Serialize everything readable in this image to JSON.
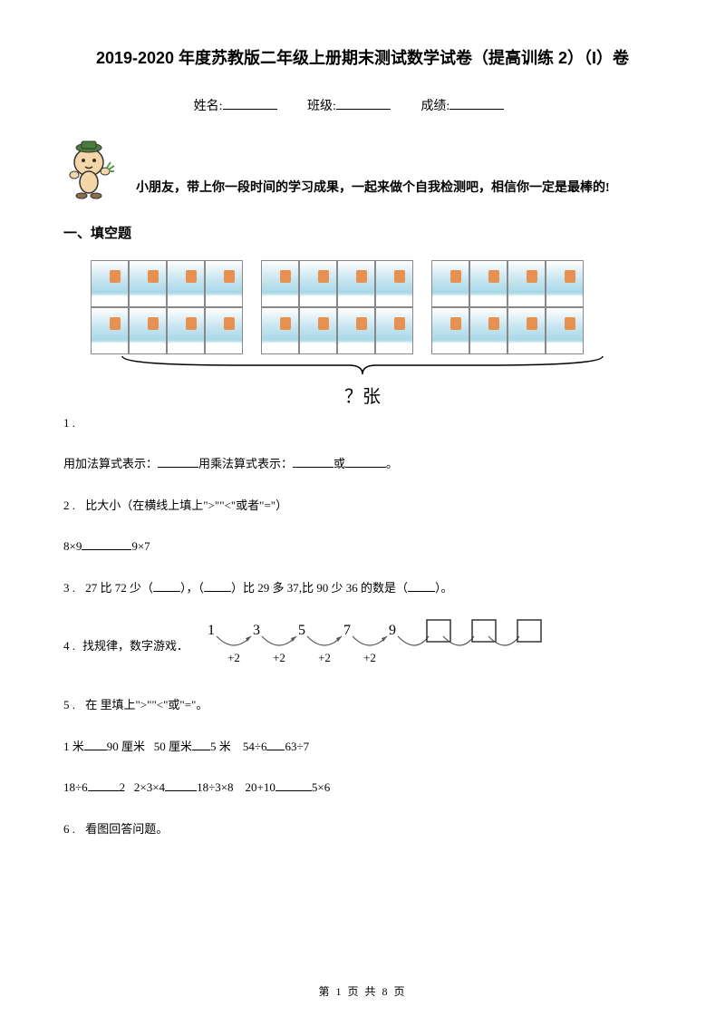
{
  "title": "2019-2020 年度苏教版二年级上册期末测试数学试卷（提高训练 2）（I）卷",
  "info": {
    "name_label": "姓名:",
    "class_label": "班级:",
    "score_label": "成绩:"
  },
  "greeting": "小朋友，带上你一段时间的学习成果，一起来做个自我检测吧，相信你一定是最棒的!",
  "section1": "一、填空题",
  "stamps": {
    "groups": 3,
    "rows_per_group": 2,
    "stamps_per_row": 4,
    "brace_label": "？张"
  },
  "q1": {
    "num": "1 .",
    "text_prefix": "用加法算式表示：",
    "text_mid": "用乘法算式表示：",
    "text_or": "或",
    "text_end": "。"
  },
  "q2": {
    "num": "2 .",
    "text": " 比大小（在横线上填上\">\"\"<\"或者\"=\"）",
    "expr_left": "8×9",
    "expr_right": "9×7"
  },
  "q3": {
    "num": "3 .",
    "part1": " 27 比 72 少（",
    "part2": "），（",
    "part3": "）比 29 多 37,比 90 少 36 的数是（",
    "part4": "）。"
  },
  "q4": {
    "num": "4 .",
    "text": " 找规律，数字游戏．",
    "sequence": [
      "1",
      "3",
      "5",
      "7",
      "9"
    ],
    "step": "+2",
    "boxes": 3
  },
  "q5": {
    "num": "5 .",
    "text": " 在   里填上\">\"\"<\"或\"=\"。",
    "line1": {
      "a1": "1 米",
      "a2": "90 厘米",
      "b1": "50 厘米",
      "b2": "5 米",
      "c1": "54÷6",
      "c2": "63÷7"
    },
    "line2": {
      "a1": "18÷6",
      "a2": "2",
      "b1": "2×3×4",
      "b2": "18÷3×8",
      "c1": "20+10",
      "c2": "5×6"
    }
  },
  "q6": {
    "num": "6 .",
    "text": " 看图回答问题。"
  },
  "footer": {
    "text": "第 1 页 共 8 页"
  },
  "colors": {
    "text": "#000000",
    "background": "#ffffff",
    "stamp_sky": "#a8d8e8",
    "stamp_accent": "#e89050",
    "mascot_body": "#f5d6a8",
    "mascot_hat": "#4a7c3c",
    "mascot_outline": "#333333"
  }
}
